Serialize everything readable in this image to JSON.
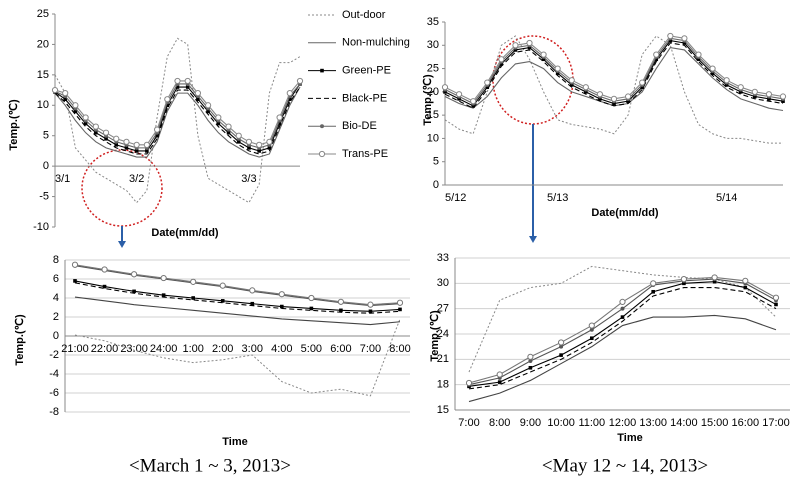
{
  "chart_data": [
    {
      "type": "line",
      "y_label": "Temp.(℃)",
      "x_label": "Date(mm/dd)",
      "categories": [
        "3/1",
        null,
        null,
        null,
        null,
        null,
        null,
        null,
        "3/2",
        null,
        null,
        null,
        null,
        null,
        null,
        null,
        null,
        null,
        null,
        "3/3",
        null,
        null,
        null,
        null,
        null
      ],
      "ylim": [
        -10,
        25
      ],
      "yticks": [
        -10,
        -5,
        0,
        5,
        10,
        15,
        20,
        25
      ],
      "grid": false,
      "series": [
        {
          "name": "Out-door",
          "color": "#888888",
          "line_style": "dotted",
          "marker": "none",
          "values": [
            15,
            12,
            3,
            1,
            -1,
            -2,
            -3,
            -4,
            -6,
            -4,
            8,
            18,
            21,
            20,
            5,
            -2,
            -3,
            -4,
            -5,
            -6,
            -3,
            12,
            17,
            17,
            18
          ]
        },
        {
          "name": "Non-mulching",
          "color": "#666666",
          "line_style": "solid",
          "marker": "none",
          "values": [
            12,
            10,
            7.5,
            5.5,
            4,
            3,
            2.5,
            2,
            1.5,
            1.5,
            4,
            9,
            12,
            12,
            10,
            7.5,
            5.5,
            4,
            3,
            2,
            1.5,
            2,
            6,
            10,
            13
          ]
        },
        {
          "name": "Green-PE",
          "color": "#000000",
          "line_style": "solid",
          "marker": "square",
          "values": [
            12.2,
            11,
            9,
            7,
            5.5,
            4.5,
            3.5,
            3,
            2.5,
            2.5,
            5,
            10,
            13,
            13,
            11,
            9,
            7,
            5.5,
            4,
            3,
            2.5,
            3,
            7,
            11,
            13.5
          ]
        },
        {
          "name": "Black-PE",
          "color": "#000000",
          "line_style": "dashed",
          "marker": "none",
          "values": [
            12,
            10.5,
            8.5,
            6.5,
            5,
            4,
            3,
            2.5,
            2,
            2,
            4.5,
            9.5,
            12.5,
            12.5,
            10.5,
            8.5,
            6.5,
            5,
            3.5,
            2.5,
            2,
            2.5,
            6.5,
            10.5,
            13
          ]
        },
        {
          "name": "Bio-DE",
          "color": "#666666",
          "line_style": "solid",
          "marker": "circle",
          "values": [
            12.3,
            11.5,
            9.5,
            7.5,
            6,
            5,
            4,
            3.5,
            3,
            3,
            5.5,
            10.5,
            13.5,
            13.5,
            11.5,
            9.5,
            7.5,
            6,
            4.5,
            3.5,
            3,
            3.5,
            7.5,
            11.5,
            13.5
          ]
        },
        {
          "name": "Trans-PE",
          "color": "#888888",
          "line_style": "solid",
          "marker": "open-circle",
          "values": [
            12.5,
            12,
            10,
            8,
            6.5,
            5.5,
            4.5,
            4,
            3.5,
            3.5,
            6,
            11,
            14,
            14,
            12,
            10,
            8,
            6.5,
            5,
            4,
            3.5,
            4,
            8,
            12,
            14
          ]
        }
      ]
    },
    {
      "type": "line",
      "y_label": "Temp.(℃)",
      "x_label": "Date(mm/dd)",
      "categories": [
        "5/12",
        null,
        null,
        null,
        null,
        null,
        null,
        null,
        "5/13",
        null,
        null,
        null,
        null,
        null,
        null,
        null,
        null,
        null,
        null,
        null,
        "5/14",
        null,
        null,
        null,
        null
      ],
      "ylim": [
        0,
        35
      ],
      "yticks": [
        0,
        5,
        10,
        15,
        20,
        25,
        30,
        35
      ],
      "grid": false,
      "series": [
        {
          "color": "#888888",
          "line_style": "dotted",
          "marker": "none",
          "values": [
            14,
            12,
            11,
            20,
            30,
            32,
            27,
            20,
            14,
            13,
            12.5,
            12,
            11,
            15,
            28,
            32,
            30,
            20,
            13,
            11,
            10,
            10,
            9.5,
            9,
            9
          ]
        },
        {
          "color": "#666666",
          "line_style": "solid",
          "marker": "none",
          "values": [
            19,
            17.5,
            16.5,
            19,
            23,
            26,
            26.5,
            25,
            22,
            20,
            19,
            18,
            17,
            17.5,
            20,
            25,
            29.5,
            29,
            26,
            23,
            20.5,
            18.5,
            17.5,
            16.5,
            16
          ]
        },
        {
          "color": "#000000",
          "line_style": "solid",
          "marker": "square",
          "values": [
            20,
            18.5,
            17,
            21,
            26,
            29,
            29.5,
            27,
            24,
            21.5,
            20,
            18.5,
            17.5,
            18,
            21,
            27,
            31,
            30.5,
            27,
            24,
            21.5,
            20,
            19,
            18.5,
            18
          ]
        },
        {
          "color": "#000000",
          "line_style": "dashed",
          "marker": "none",
          "values": [
            19.5,
            18,
            16.5,
            20.5,
            25.5,
            28.5,
            29,
            26.5,
            23.5,
            21,
            19.5,
            18,
            17,
            17.5,
            20.5,
            26.5,
            30.5,
            30,
            26.5,
            23.5,
            21,
            19.5,
            18.5,
            18,
            17.5
          ]
        },
        {
          "color": "#666666",
          "line_style": "solid",
          "marker": "circle",
          "values": [
            20.5,
            19,
            17.5,
            21.5,
            26.5,
            29.5,
            30,
            27.5,
            24.5,
            22,
            20.5,
            19,
            18,
            18.5,
            21.5,
            27.5,
            31.5,
            31,
            27.5,
            24.5,
            22,
            20.5,
            19.5,
            19,
            18.5
          ]
        },
        {
          "color": "#888888",
          "line_style": "solid",
          "marker": "open-circle",
          "values": [
            21,
            19.5,
            18,
            22,
            27,
            30,
            30.5,
            28,
            25,
            22.5,
            21,
            19.5,
            18.5,
            19,
            22,
            28,
            32,
            31.5,
            28,
            25,
            22.5,
            21,
            20,
            19.5,
            19
          ]
        }
      ]
    },
    {
      "type": "line",
      "y_label": "Temp.(℃)",
      "x_label": "Time",
      "caption": "<March 1 ~ 3, 2013>",
      "categories": [
        "21:00",
        "22:00",
        "23:00",
        "24:00",
        "1:00",
        "2:00",
        "3:00",
        "4:00",
        "5:00",
        "6:00",
        "7:00",
        "8:00"
      ],
      "ylim": [
        -8,
        8
      ],
      "yticks": [
        -8,
        -6,
        -4,
        -2,
        0,
        2,
        4,
        6,
        8
      ],
      "grid": true,
      "series": [
        {
          "color": "#888888",
          "line_style": "dotted",
          "marker": "none",
          "values": [
            0.1,
            -0.5,
            -1.5,
            -2.3,
            -2.8,
            -2.5,
            -2,
            -4.8,
            -6,
            -5.6,
            -6.3,
            1.8
          ]
        },
        {
          "color": "#444444",
          "line_style": "solid",
          "marker": "none",
          "values": [
            4.1,
            3.7,
            3.3,
            3,
            2.7,
            2.4,
            2.1,
            1.8,
            1.6,
            1.4,
            1.2,
            1.5
          ]
        },
        {
          "color": "#000000",
          "line_style": "solid",
          "marker": "square",
          "values": [
            5.8,
            5.2,
            4.7,
            4.3,
            4,
            3.7,
            3.4,
            3.1,
            2.9,
            2.7,
            2.6,
            2.8
          ]
        },
        {
          "color": "#000000",
          "line_style": "dashed",
          "marker": "none",
          "values": [
            5.6,
            5,
            4.5,
            4.1,
            3.8,
            3.5,
            3.2,
            2.9,
            2.7,
            2.5,
            2.4,
            2.6
          ]
        },
        {
          "color": "#555555",
          "line_style": "solid",
          "marker": "circle",
          "values": [
            7.4,
            6.9,
            6.4,
            6,
            5.6,
            5.2,
            4.7,
            4.3,
            3.9,
            3.5,
            3.2,
            3.4
          ]
        },
        {
          "color": "#777777",
          "line_style": "solid",
          "marker": "open-circle",
          "values": [
            7.5,
            7,
            6.5,
            6.1,
            5.7,
            5.3,
            4.8,
            4.4,
            4,
            3.6,
            3.3,
            3.5
          ]
        }
      ]
    },
    {
      "type": "line",
      "y_label": "Temp.(℃)",
      "x_label": "Time",
      "caption": "<May 12 ~ 14, 2013>",
      "categories": [
        "7:00",
        "8:00",
        "9:00",
        "10:00",
        "11:00",
        "12:00",
        "13:00",
        "14:00",
        "15:00",
        "16:00",
        "17:00"
      ],
      "ylim": [
        15,
        33
      ],
      "yticks": [
        15,
        18,
        21,
        24,
        27,
        30,
        33
      ],
      "grid": true,
      "series": [
        {
          "color": "#888888",
          "line_style": "dotted",
          "marker": "none",
          "values": [
            19.5,
            28,
            29.5,
            30,
            32,
            31.5,
            31,
            30.7,
            30.5,
            29.5,
            26
          ]
        },
        {
          "color": "#444444",
          "line_style": "solid",
          "marker": "none",
          "values": [
            16,
            17,
            18.5,
            20.5,
            22.5,
            25,
            26,
            26,
            26.2,
            25.8,
            24.5
          ]
        },
        {
          "color": "#000000",
          "line_style": "solid",
          "marker": "square",
          "values": [
            17.8,
            18.3,
            20,
            21.5,
            23.5,
            26,
            29,
            30,
            30.2,
            29.5,
            27.5
          ]
        },
        {
          "color": "#000000",
          "line_style": "dashed",
          "marker": "none",
          "values": [
            17.5,
            18,
            19.5,
            21,
            23,
            25.5,
            28.5,
            29.5,
            29.5,
            29,
            27
          ]
        },
        {
          "color": "#555555",
          "line_style": "solid",
          "marker": "circle",
          "values": [
            18,
            18.8,
            20.8,
            22.5,
            24.5,
            27,
            29.8,
            30.3,
            30.5,
            30,
            28
          ]
        },
        {
          "color": "#777777",
          "line_style": "solid",
          "marker": "open-circle",
          "values": [
            18.2,
            19.2,
            21.3,
            23,
            25,
            27.8,
            30,
            30.5,
            30.7,
            30.3,
            28.3
          ]
        }
      ]
    }
  ]
}
